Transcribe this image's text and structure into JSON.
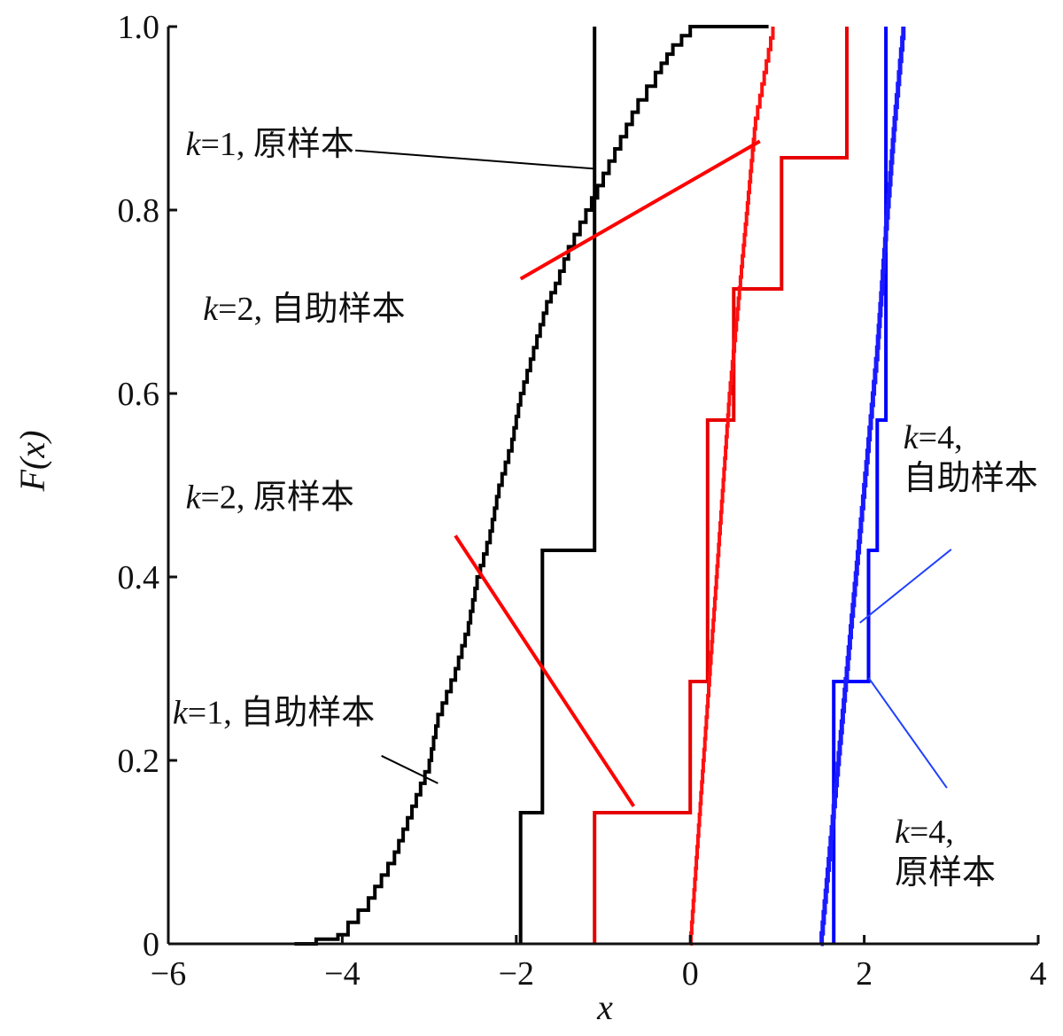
{
  "chart_data": {
    "type": "line",
    "xlabel": "x",
    "ylabel": "F(x)",
    "xlim": [
      -6,
      4
    ],
    "ylim": [
      0,
      1
    ],
    "xticks": [
      {
        "value": -6,
        "label": "−6"
      },
      {
        "value": -4,
        "label": "−4"
      },
      {
        "value": -2,
        "label": "−2"
      },
      {
        "value": 0,
        "label": "0"
      },
      {
        "value": 2,
        "label": "2"
      },
      {
        "value": 4,
        "label": "4"
      }
    ],
    "yticks": [
      {
        "value": 0,
        "label": "0"
      },
      {
        "value": 0.2,
        "label": "0.2"
      },
      {
        "value": 0.4,
        "label": "0.4"
      },
      {
        "value": 0.6,
        "label": "0.6"
      },
      {
        "value": 0.8,
        "label": "0.8"
      },
      {
        "value": 1.0,
        "label": "1.0"
      }
    ],
    "grid": false,
    "series": [
      {
        "name": "k=1, 原样本",
        "color": "#000000",
        "kind": "step",
        "x": [
          -1.95,
          -1.7,
          -1.1
        ],
        "levels": [
          0,
          0.143,
          0.429,
          1.0
        ],
        "x_end": -1.1
      },
      {
        "name": "k=1, 自助样本",
        "color": "#000000",
        "kind": "empirical",
        "x": [
          -4.55,
          -4.05,
          -3.7,
          -3.4,
          -3.2,
          -3.0,
          -2.9,
          -2.7,
          -2.55,
          -2.45,
          -2.3,
          -2.2,
          -2.05,
          -1.95,
          -1.8,
          -1.65,
          -1.55,
          -1.4,
          -1.2,
          -1.0,
          -0.8,
          -0.6,
          -0.4,
          -0.2,
          0.0,
          0.3,
          0.9
        ],
        "y": [
          0,
          0.01,
          0.05,
          0.1,
          0.15,
          0.2,
          0.25,
          0.3,
          0.35,
          0.4,
          0.45,
          0.5,
          0.55,
          0.6,
          0.65,
          0.7,
          0.72,
          0.76,
          0.8,
          0.84,
          0.88,
          0.92,
          0.95,
          0.98,
          1.0,
          1.0,
          1.0
        ]
      },
      {
        "name": "k=2, 原样本",
        "color": "#e60000",
        "kind": "step",
        "x": [
          -1.1,
          0.0,
          0.2,
          0.5,
          1.05,
          1.8
        ],
        "levels": [
          0,
          0.143,
          0.286,
          0.571,
          0.714,
          0.857,
          1.0
        ],
        "x_end": 1.8
      },
      {
        "name": "k=2, 自助样本",
        "color": "#ff1010",
        "kind": "empirical",
        "x": [
          0.0,
          0.15,
          0.3,
          0.45,
          0.6,
          0.75,
          0.95
        ],
        "y": [
          0,
          0.2,
          0.4,
          0.6,
          0.75,
          0.9,
          1.0
        ]
      },
      {
        "name": "k=4, 原样本",
        "color": "#0000ff",
        "kind": "step",
        "x": [
          1.65,
          2.05,
          2.15,
          2.25
        ],
        "levels": [
          0,
          0.286,
          0.429,
          0.571,
          1.0
        ],
        "x_end": 2.25
      },
      {
        "name": "k=4, 自助样本",
        "color": "#1a1aff",
        "kind": "empirical",
        "x": [
          1.5,
          1.65,
          1.8,
          1.95,
          2.05,
          2.15,
          2.25,
          2.35,
          2.45
        ],
        "y": [
          0,
          0.15,
          0.3,
          0.45,
          0.55,
          0.65,
          0.78,
          0.9,
          1.0
        ]
      }
    ],
    "annotations": [
      {
        "id": "k1-orig",
        "text": "k=1, 原样本",
        "line_color": "#000000",
        "line_width": 2,
        "text_pos": [
          -5.8,
          0.86
        ],
        "line_from": [
          -3.85,
          0.865
        ],
        "line_to": [
          -1.1,
          0.845
        ]
      },
      {
        "id": "k2-boot",
        "text": "k=2, 自助样本",
        "line_color": "#ff0000",
        "line_width": 4,
        "text_pos": [
          -5.6,
          0.68
        ],
        "line_from": [
          -1.95,
          0.725
        ],
        "line_to": [
          0.8,
          0.875
        ]
      },
      {
        "id": "k2-orig",
        "text": "k=2, 原样本",
        "line_color": "#ff0000",
        "line_width": 4,
        "text_pos": [
          -5.8,
          0.475
        ],
        "line_from": [
          -2.7,
          0.445
        ],
        "line_to": [
          -0.65,
          0.15
        ]
      },
      {
        "id": "k1-boot",
        "text": "k=1, 自助样本",
        "line_color": "#000000",
        "line_width": 2,
        "text_pos": [
          -5.95,
          0.24
        ],
        "line_from": [
          -3.55,
          0.205
        ],
        "line_to": [
          -2.9,
          0.175
        ]
      },
      {
        "id": "k4-boot",
        "text": "k=4,\n自助样本",
        "line_color": "#2040ff",
        "line_width": 2,
        "text_pos": [
          2.45,
          0.54
        ],
        "line_from": [
          3.0,
          0.43
        ],
        "line_to": [
          1.95,
          0.35
        ]
      },
      {
        "id": "k4-orig",
        "text": "k=4,\n原样本",
        "line_color": "#2040ff",
        "line_width": 2,
        "text_pos": [
          2.35,
          0.11
        ],
        "line_from": [
          2.95,
          0.17
        ],
        "line_to": [
          2.05,
          0.29
        ]
      }
    ]
  }
}
